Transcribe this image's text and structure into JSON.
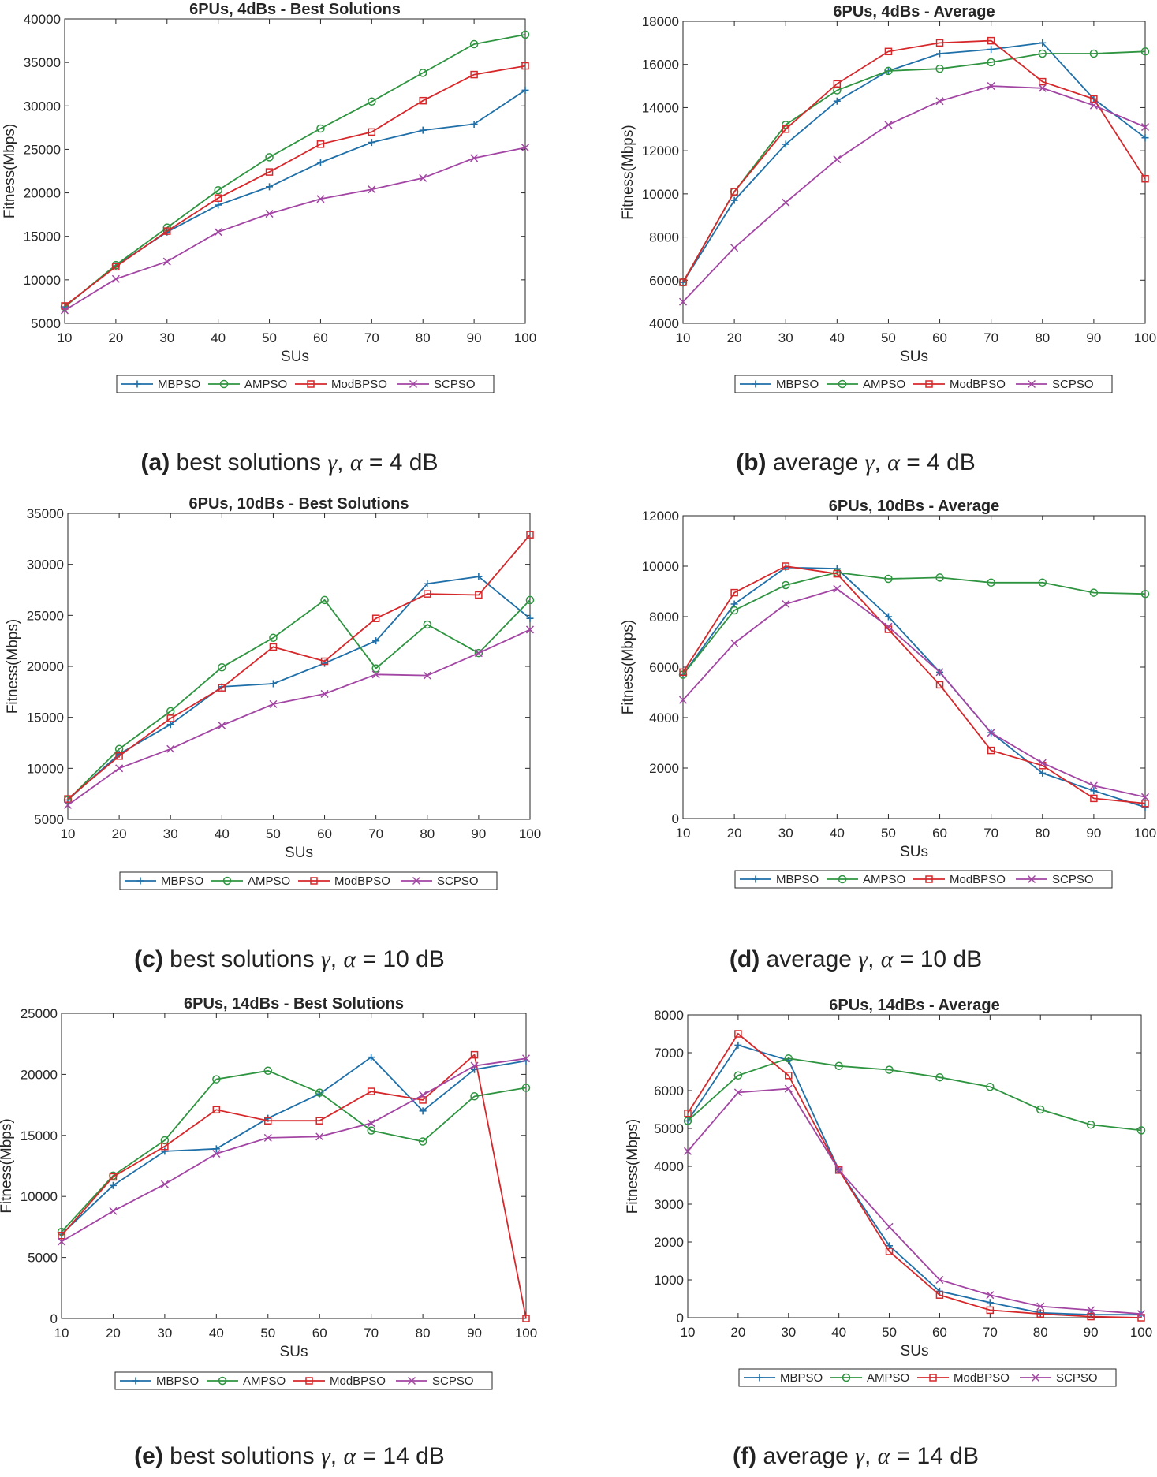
{
  "figure": {
    "legend": [
      "MBPSO",
      "AMPSO",
      "ModBPSO",
      "SCPSO"
    ],
    "series_colors": {
      "MBPSO": "#1f6fa8",
      "AMPSO": "#2e9440",
      "ModBPSO": "#d6282b",
      "SCPSO": "#a245a3"
    },
    "series_markers": {
      "MBPSO": "plus",
      "AMPSO": "circle",
      "ModBPSO": "square",
      "SCPSO": "cross"
    }
  },
  "chart_data": [
    {
      "id": "a",
      "type": "line",
      "title": "6PUs, 4dBs - Best Solutions",
      "xlabel": "SUs",
      "ylabel": "Fitness(Mbps)",
      "x": [
        10,
        20,
        30,
        40,
        50,
        60,
        70,
        80,
        90,
        100
      ],
      "xlim": [
        10,
        100
      ],
      "ylim": [
        5000,
        40000
      ],
      "yticks": [
        "5000",
        "10000",
        "15000",
        "20000",
        "25000",
        "30000",
        "35000",
        "40000"
      ],
      "xticks": [
        "10",
        "20",
        "30",
        "40",
        "50",
        "60",
        "70",
        "80",
        "90",
        "100"
      ],
      "series": [
        {
          "name": "MBPSO",
          "values": [
            6900,
            11600,
            15500,
            18600,
            20700,
            23500,
            25800,
            27200,
            27900,
            31800
          ]
        },
        {
          "name": "AMPSO",
          "values": [
            6900,
            11700,
            16000,
            20300,
            24100,
            27400,
            30500,
            33800,
            37100,
            38200
          ]
        },
        {
          "name": "ModBPSO",
          "values": [
            7000,
            11500,
            15600,
            19400,
            22400,
            25600,
            27000,
            30600,
            33600,
            34600
          ]
        },
        {
          "name": "SCPSO",
          "values": [
            6500,
            10100,
            12100,
            15500,
            17600,
            19300,
            20400,
            21700,
            24000,
            25200
          ]
        }
      ],
      "caption": {
        "label": "(a)",
        "text": "best solutions",
        "sym_gamma": "γ",
        "sym_alpha": "α",
        "rest": "= 4 dB"
      }
    },
    {
      "id": "b",
      "type": "line",
      "title": "6PUs, 4dBs - Average",
      "xlabel": "SUs",
      "ylabel": "Fitness(Mbps)",
      "x": [
        10,
        20,
        30,
        40,
        50,
        60,
        70,
        80,
        90,
        100
      ],
      "xlim": [
        10,
        100
      ],
      "ylim": [
        4000,
        18000
      ],
      "yticks": [
        "4000",
        "6000",
        "8000",
        "10000",
        "12000",
        "14000",
        "16000",
        "18000"
      ],
      "xticks": [
        "10",
        "20",
        "30",
        "40",
        "50",
        "60",
        "70",
        "80",
        "90",
        "100"
      ],
      "series": [
        {
          "name": "MBPSO",
          "values": [
            5900,
            9700,
            12300,
            14300,
            15700,
            16500,
            16700,
            17000,
            14400,
            12600
          ]
        },
        {
          "name": "AMPSO",
          "values": [
            5900,
            10100,
            13200,
            14800,
            15700,
            15800,
            16100,
            16500,
            16500,
            16600
          ]
        },
        {
          "name": "ModBPSO",
          "values": [
            5900,
            10100,
            13000,
            15100,
            16600,
            17000,
            17100,
            15200,
            14400,
            10700
          ]
        },
        {
          "name": "SCPSO",
          "values": [
            5000,
            7500,
            9600,
            11600,
            13200,
            14300,
            15000,
            14900,
            14100,
            13100
          ]
        }
      ],
      "caption": {
        "label": "(b)",
        "text": "average",
        "sym_gamma": "γ",
        "sym_alpha": "α",
        "rest": "= 4 dB"
      }
    },
    {
      "id": "c",
      "type": "line",
      "title": "6PUs, 10dBs - Best Solutions",
      "xlabel": "SUs",
      "ylabel": "Fitness(Mbps)",
      "x": [
        10,
        20,
        30,
        40,
        50,
        60,
        70,
        80,
        90,
        100
      ],
      "xlim": [
        10,
        100
      ],
      "ylim": [
        5000,
        35000
      ],
      "yticks": [
        "5000",
        "10000",
        "15000",
        "20000",
        "25000",
        "30000",
        "35000"
      ],
      "xticks": [
        "10",
        "20",
        "30",
        "40",
        "50",
        "60",
        "70",
        "80",
        "90",
        "100"
      ],
      "series": [
        {
          "name": "MBPSO",
          "values": [
            6900,
            11400,
            14300,
            18000,
            18300,
            20300,
            22500,
            28100,
            28800,
            24700
          ]
        },
        {
          "name": "AMPSO",
          "values": [
            6900,
            11900,
            15600,
            19900,
            22800,
            26500,
            19800,
            24100,
            21300,
            26500
          ]
        },
        {
          "name": "ModBPSO",
          "values": [
            7000,
            11200,
            14900,
            17900,
            21900,
            20500,
            24700,
            27100,
            27000,
            32900
          ]
        },
        {
          "name": "SCPSO",
          "values": [
            6400,
            10000,
            11900,
            14200,
            16300,
            17300,
            19200,
            19100,
            21300,
            23600
          ]
        }
      ],
      "caption": {
        "label": "(c)",
        "text": "best solutions",
        "sym_gamma": "γ",
        "sym_alpha": "α",
        "rest": "= 10 dB"
      }
    },
    {
      "id": "d",
      "type": "line",
      "title": "6PUs, 10dBs - Average",
      "xlabel": "SUs",
      "ylabel": "Fitness(Mbps)",
      "x": [
        10,
        20,
        30,
        40,
        50,
        60,
        70,
        80,
        90,
        100
      ],
      "xlim": [
        10,
        100
      ],
      "ylim": [
        0,
        12000
      ],
      "yticks": [
        "0",
        "2000",
        "4000",
        "6000",
        "8000",
        "10000",
        "12000"
      ],
      "xticks": [
        "10",
        "20",
        "30",
        "40",
        "50",
        "60",
        "70",
        "80",
        "90",
        "100"
      ],
      "series": [
        {
          "name": "MBPSO",
          "values": [
            5700,
            8500,
            9950,
            9900,
            8000,
            5800,
            3400,
            1800,
            1100,
            450
          ]
        },
        {
          "name": "AMPSO",
          "values": [
            5700,
            8250,
            9250,
            9750,
            9500,
            9550,
            9350,
            9350,
            8950,
            8900
          ]
        },
        {
          "name": "ModBPSO",
          "values": [
            5800,
            8950,
            10000,
            9700,
            7500,
            5300,
            2700,
            2100,
            800,
            600
          ]
        },
        {
          "name": "SCPSO",
          "values": [
            4700,
            6950,
            8500,
            9100,
            7600,
            5800,
            3400,
            2200,
            1300,
            850
          ]
        }
      ],
      "caption": {
        "label": "(d)",
        "text": "average",
        "sym_gamma": "γ",
        "sym_alpha": "α",
        "rest": "= 10 dB"
      }
    },
    {
      "id": "e",
      "type": "line",
      "title": "6PUs, 14dBs - Best Solutions",
      "xlabel": "SUs",
      "ylabel": "Fitness(Mbps)",
      "x": [
        10,
        20,
        30,
        40,
        50,
        60,
        70,
        80,
        90,
        100
      ],
      "xlim": [
        10,
        100
      ],
      "ylim": [
        0,
        25000
      ],
      "yticks": [
        "0",
        "5000",
        "10000",
        "15000",
        "20000",
        "25000"
      ],
      "xticks": [
        "10",
        "20",
        "30",
        "40",
        "50",
        "60",
        "70",
        "80",
        "90",
        "100"
      ],
      "series": [
        {
          "name": "MBPSO",
          "values": [
            6900,
            10900,
            13700,
            13900,
            16400,
            18400,
            21400,
            17000,
            20400,
            21100
          ]
        },
        {
          "name": "AMPSO",
          "values": [
            7100,
            11700,
            14600,
            19600,
            20300,
            18500,
            15400,
            14500,
            18200,
            18900
          ]
        },
        {
          "name": "ModBPSO",
          "values": [
            6800,
            11600,
            14100,
            17100,
            16200,
            16200,
            18600,
            17900,
            21600,
            0
          ]
        },
        {
          "name": "SCPSO",
          "values": [
            6300,
            8800,
            11000,
            13500,
            14800,
            14900,
            16000,
            18300,
            20700,
            21300
          ]
        }
      ],
      "caption": {
        "label": "(e)",
        "text": "best solutions",
        "sym_gamma": "γ",
        "sym_alpha": "α",
        "rest": "= 14 dB"
      }
    },
    {
      "id": "f",
      "type": "line",
      "title": "6PUs, 14dBs - Average",
      "xlabel": "SUs",
      "ylabel": "Fitness(Mbps)",
      "x": [
        10,
        20,
        30,
        40,
        50,
        60,
        70,
        80,
        90,
        100
      ],
      "xlim": [
        10,
        100
      ],
      "ylim": [
        0,
        8000
      ],
      "yticks": [
        "0",
        "1000",
        "2000",
        "3000",
        "4000",
        "5000",
        "6000",
        "7000",
        "8000"
      ],
      "xticks": [
        "10",
        "20",
        "30",
        "40",
        "50",
        "60",
        "70",
        "80",
        "90",
        "100"
      ],
      "series": [
        {
          "name": "MBPSO",
          "values": [
            5200,
            7200,
            6800,
            3900,
            1900,
            700,
            400,
            130,
            80,
            80
          ]
        },
        {
          "name": "AMPSO",
          "values": [
            5200,
            6400,
            6850,
            6650,
            6550,
            6350,
            6100,
            5500,
            5100,
            4950
          ]
        },
        {
          "name": "ModBPSO",
          "values": [
            5400,
            7500,
            6400,
            3900,
            1750,
            600,
            200,
            100,
            30,
            0
          ]
        },
        {
          "name": "SCPSO",
          "values": [
            4400,
            5950,
            6050,
            3900,
            2400,
            1000,
            600,
            300,
            200,
            100
          ]
        }
      ],
      "caption": {
        "label": "(f)",
        "text": "average",
        "sym_gamma": "γ",
        "sym_alpha": "α",
        "rest": "= 14 dB"
      }
    }
  ]
}
